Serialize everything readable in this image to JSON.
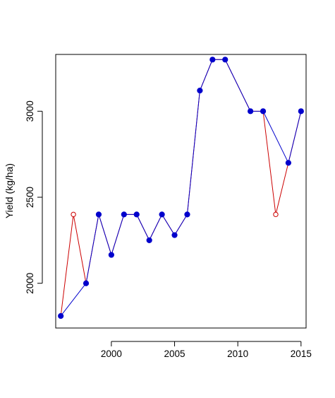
{
  "chart_data": {
    "type": "line",
    "title": "",
    "xlabel": "",
    "ylabel": "Yield (kg/ha)",
    "xlim": [
      1995.6,
      2015.4
    ],
    "ylim": [
      1740,
      3330
    ],
    "x_ticks": [
      2000,
      2005,
      2010,
      2015
    ],
    "y_ticks": [
      2000,
      2500,
      3000
    ],
    "grid": false,
    "legend": "none",
    "series": [
      {
        "marker": "open-circle",
        "color": "#cc0000",
        "points": [
          {
            "x": 1996,
            "y": 1810
          },
          {
            "x": 1997,
            "y": 2400
          },
          {
            "x": 1998,
            "y": 2000
          },
          {
            "x": 1999,
            "y": 2400
          },
          {
            "x": 2000,
            "y": 2165
          },
          {
            "x": 2001,
            "y": 2400
          },
          {
            "x": 2002,
            "y": 2400
          },
          {
            "x": 2003,
            "y": 2250
          },
          {
            "x": 2004,
            "y": 2400
          },
          {
            "x": 2005,
            "y": 2280
          },
          {
            "x": 2006,
            "y": 2400
          },
          {
            "x": 2007,
            "y": 3120
          },
          {
            "x": 2008,
            "y": 3300
          },
          {
            "x": 2009,
            "y": 3300
          },
          {
            "x": 2011,
            "y": 3000
          },
          {
            "x": 2012,
            "y": 3000
          },
          {
            "x": 2013,
            "y": 2400
          },
          {
            "x": 2014,
            "y": 2700
          },
          {
            "x": 2015,
            "y": 3000
          }
        ]
      },
      {
        "marker": "filled-circle",
        "color": "#0000cc",
        "points": [
          {
            "x": 1996,
            "y": 1810
          },
          {
            "x": 1998,
            "y": 2000
          },
          {
            "x": 1999,
            "y": 2400
          },
          {
            "x": 2000,
            "y": 2165
          },
          {
            "x": 2001,
            "y": 2400
          },
          {
            "x": 2002,
            "y": 2400
          },
          {
            "x": 2003,
            "y": 2250
          },
          {
            "x": 2004,
            "y": 2400
          },
          {
            "x": 2005,
            "y": 2280
          },
          {
            "x": 2006,
            "y": 2400
          },
          {
            "x": 2007,
            "y": 3120
          },
          {
            "x": 2008,
            "y": 3300
          },
          {
            "x": 2009,
            "y": 3300
          },
          {
            "x": 2011,
            "y": 3000
          },
          {
            "x": 2012,
            "y": 3000
          },
          {
            "x": 2014,
            "y": 2700
          },
          {
            "x": 2015,
            "y": 3000
          }
        ]
      }
    ]
  }
}
